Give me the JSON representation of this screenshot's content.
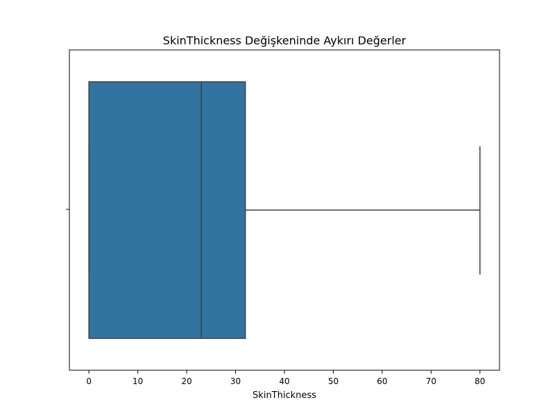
{
  "chart_data": {
    "type": "box",
    "title": "SkinThickness Değişkeninde Aykırı Değerler",
    "xlabel": "SkinThickness",
    "ylabel": "",
    "xlim": [
      -4,
      84
    ],
    "xticks": [
      0,
      10,
      20,
      30,
      40,
      50,
      60,
      70,
      80
    ],
    "orientation": "horizontal",
    "grid": false,
    "box": {
      "whisker_low": 0,
      "q1": 0,
      "median": 23,
      "q3": 32,
      "whisker_high": 80
    },
    "colors": {
      "box_fill": "#3274a1",
      "line": "#3d3d3d",
      "axes": "#000000"
    }
  }
}
